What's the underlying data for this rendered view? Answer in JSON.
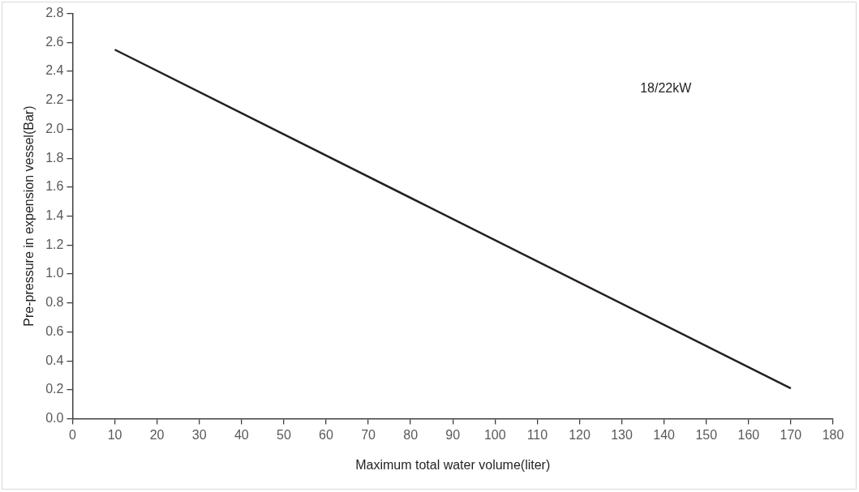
{
  "chart_data": {
    "type": "line",
    "xlabel": "Maximum total water volume(liter)",
    "ylabel": "Pre-pressure in expension vessel(Bar)",
    "x": [
      10,
      170
    ],
    "series": [
      {
        "name": "18/22kW",
        "color": "#231f20",
        "values": [
          2.55,
          0.21
        ]
      }
    ],
    "xlim": [
      0,
      180
    ],
    "xticks": [
      0,
      10,
      20,
      30,
      40,
      50,
      60,
      70,
      80,
      90,
      100,
      110,
      120,
      130,
      140,
      150,
      160,
      170,
      180
    ],
    "ylim": [
      0,
      2.8
    ],
    "yticks": [
      {
        "value": 0,
        "label": "0.0"
      },
      {
        "value": 0.2,
        "label": "0.2"
      },
      {
        "value": 0.4,
        "label": "0.4"
      },
      {
        "value": 0.6,
        "label": "0.6"
      },
      {
        "value": 0.8,
        "label": "0.8"
      },
      {
        "value": 1.0,
        "label": "1.0"
      },
      {
        "value": 1.2,
        "label": "1.2"
      },
      {
        "value": 1.4,
        "label": "1.4"
      },
      {
        "value": 1.6,
        "label": "1.6"
      },
      {
        "value": 1.8,
        "label": "1.8"
      },
      {
        "value": 2.0,
        "label": "2.0"
      },
      {
        "value": 2.2,
        "label": "2.2"
      },
      {
        "value": 2.4,
        "label": "2.4"
      },
      {
        "value": 2.6,
        "label": "2.6"
      },
      {
        "value": 2.8,
        "label": "2.8"
      }
    ],
    "grid": false,
    "legend": false,
    "marker": "none",
    "line_style": "solid"
  }
}
